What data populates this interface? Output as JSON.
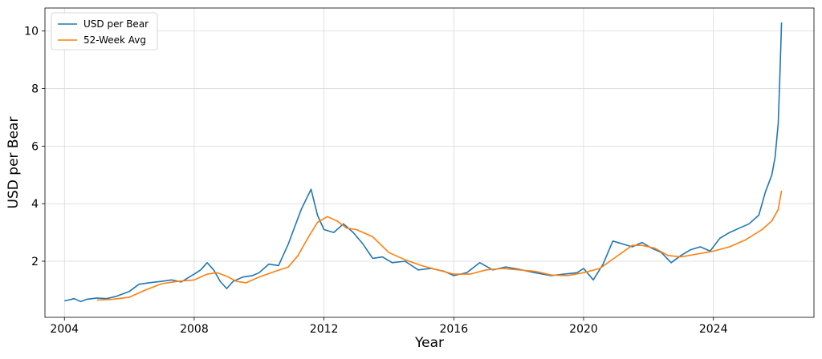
{
  "chart_data": {
    "type": "line",
    "title": "",
    "xlabel": "Year",
    "ylabel": "USD per Bear",
    "xlim": [
      2003.4,
      2027.1
    ],
    "ylim": [
      0.05,
      10.8
    ],
    "x_ticks": [
      "2004",
      "2008",
      "2012",
      "2016",
      "2020",
      "2024"
    ],
    "y_ticks": [
      "2",
      "4",
      "6",
      "8",
      "10"
    ],
    "grid": true,
    "legend_position": "top-left",
    "series": [
      {
        "name": "USD per Bear",
        "color": "#1f77b4",
        "x": [
          2004.0,
          2004.3,
          2004.5,
          2004.7,
          2005.0,
          2005.3,
          2005.6,
          2006.0,
          2006.3,
          2006.6,
          2007.0,
          2007.3,
          2007.6,
          2008.0,
          2008.2,
          2008.4,
          2008.6,
          2008.8,
          2009.0,
          2009.2,
          2009.5,
          2009.8,
          2010.0,
          2010.3,
          2010.6,
          2010.9,
          2011.1,
          2011.3,
          2011.6,
          2011.8,
          2012.0,
          2012.3,
          2012.6,
          2012.9,
          2013.2,
          2013.5,
          2013.8,
          2014.1,
          2014.5,
          2014.9,
          2015.3,
          2015.7,
          2016.0,
          2016.4,
          2016.8,
          2017.2,
          2017.6,
          2018.0,
          2018.5,
          2019.0,
          2019.4,
          2019.8,
          2020.0,
          2020.3,
          2020.6,
          2020.9,
          2021.2,
          2021.5,
          2021.8,
          2022.1,
          2022.4,
          2022.7,
          2023.0,
          2023.3,
          2023.6,
          2023.9,
          2024.2,
          2024.5,
          2024.8,
          2025.1,
          2025.4,
          2025.6,
          2025.8,
          2025.9,
          2026.0,
          2026.05,
          2026.1
        ],
        "values": [
          0.62,
          0.7,
          0.6,
          0.68,
          0.72,
          0.7,
          0.78,
          0.95,
          1.2,
          1.25,
          1.3,
          1.35,
          1.28,
          1.55,
          1.7,
          1.95,
          1.7,
          1.3,
          1.05,
          1.3,
          1.45,
          1.5,
          1.6,
          1.9,
          1.85,
          2.6,
          3.2,
          3.8,
          4.5,
          3.6,
          3.1,
          3.0,
          3.3,
          3.0,
          2.6,
          2.1,
          2.15,
          1.95,
          2.0,
          1.7,
          1.75,
          1.65,
          1.5,
          1.6,
          1.95,
          1.7,
          1.8,
          1.72,
          1.6,
          1.5,
          1.55,
          1.6,
          1.75,
          1.35,
          1.9,
          2.7,
          2.6,
          2.5,
          2.65,
          2.45,
          2.3,
          1.95,
          2.2,
          2.4,
          2.5,
          2.35,
          2.8,
          3.0,
          3.15,
          3.3,
          3.6,
          4.4,
          5.0,
          5.6,
          6.8,
          8.5,
          10.3
        ]
      },
      {
        "name": "52-Week Avg",
        "color": "#ff7f0e",
        "x": [
          2005.0,
          2005.5,
          2006.0,
          2006.5,
          2007.0,
          2007.5,
          2008.0,
          2008.4,
          2008.7,
          2009.0,
          2009.3,
          2009.6,
          2010.0,
          2010.5,
          2010.9,
          2011.2,
          2011.5,
          2011.8,
          2012.1,
          2012.4,
          2012.7,
          2013.0,
          2013.5,
          2014.0,
          2014.5,
          2015.0,
          2015.5,
          2016.0,
          2016.5,
          2017.0,
          2017.5,
          2018.0,
          2018.5,
          2019.0,
          2019.5,
          2020.0,
          2020.5,
          2021.0,
          2021.5,
          2021.8,
          2022.2,
          2022.6,
          2023.0,
          2023.5,
          2024.0,
          2024.5,
          2025.0,
          2025.5,
          2025.8,
          2026.0,
          2026.1
        ],
        "values": [
          0.65,
          0.68,
          0.75,
          1.0,
          1.22,
          1.3,
          1.35,
          1.55,
          1.6,
          1.48,
          1.3,
          1.25,
          1.45,
          1.65,
          1.8,
          2.2,
          2.8,
          3.35,
          3.55,
          3.4,
          3.15,
          3.1,
          2.85,
          2.3,
          2.05,
          1.85,
          1.7,
          1.55,
          1.55,
          1.7,
          1.75,
          1.7,
          1.65,
          1.52,
          1.5,
          1.6,
          1.75,
          2.15,
          2.55,
          2.55,
          2.45,
          2.2,
          2.15,
          2.25,
          2.35,
          2.5,
          2.75,
          3.1,
          3.4,
          3.8,
          4.45
        ]
      }
    ]
  }
}
